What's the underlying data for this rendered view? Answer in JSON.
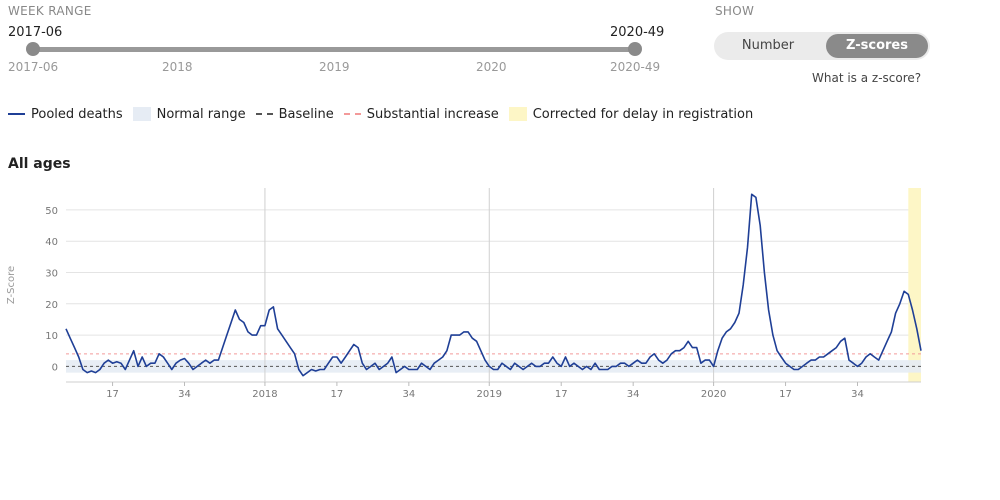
{
  "controls": {
    "week_range_label": "WEEK RANGE",
    "range_start": "2017-06",
    "range_end": "2020-49",
    "slider_ticks": [
      "2017-06",
      "2018",
      "2019",
      "2020",
      "2020-49"
    ],
    "show_label": "SHOW",
    "toggle_number": "Number",
    "toggle_zscores": "Z-scores",
    "toggle_selected": "Z-scores",
    "zscore_help": "What is a z-score?"
  },
  "legend": {
    "pooled_deaths": "Pooled deaths",
    "normal_range": "Normal range",
    "baseline": "Baseline",
    "substantial_increase": "Substantial increase",
    "corrected": "Corrected for delay in registration"
  },
  "colors": {
    "series": "#1f3f96",
    "normal_range": "#e6ecf4",
    "baseline": "#555555",
    "substantial_increase": "#f39a9a",
    "corrected": "#fdf6c6",
    "toggle_active": "#8a8a8a"
  },
  "chart_data": {
    "type": "line",
    "title": "All ages",
    "ylabel": "Z-Score",
    "xlabel": "",
    "ylim": [
      -5,
      57
    ],
    "yticks": [
      0,
      10,
      20,
      30,
      40,
      50
    ],
    "x_range_weeks": [
      0,
      202
    ],
    "x_tick_labels": [
      {
        "week": 11,
        "label": "17"
      },
      {
        "week": 28,
        "label": "34"
      },
      {
        "week": 47,
        "label": "2018"
      },
      {
        "week": 64,
        "label": "17"
      },
      {
        "week": 81,
        "label": "34"
      },
      {
        "week": 100,
        "label": "2019"
      },
      {
        "week": 117,
        "label": "17"
      },
      {
        "week": 134,
        "label": "34"
      },
      {
        "week": 153,
        "label": "2020"
      },
      {
        "week": 170,
        "label": "17"
      },
      {
        "week": 187,
        "label": "34"
      }
    ],
    "year_lines_weeks": [
      47,
      100,
      153
    ],
    "normal_range": [
      -2,
      2
    ],
    "baseline": 0,
    "substantial_increase": 4,
    "corrected_weeks": [
      199,
      202
    ],
    "series": [
      {
        "name": "Pooled deaths",
        "x": [
          0,
          1,
          2,
          3,
          4,
          5,
          6,
          7,
          8,
          9,
          10,
          11,
          12,
          13,
          14,
          15,
          16,
          17,
          18,
          19,
          20,
          21,
          22,
          23,
          24,
          25,
          26,
          27,
          28,
          29,
          30,
          31,
          32,
          33,
          34,
          35,
          36,
          37,
          38,
          39,
          40,
          41,
          42,
          43,
          44,
          45,
          46,
          47,
          48,
          49,
          50,
          51,
          52,
          53,
          54,
          55,
          56,
          57,
          58,
          59,
          60,
          61,
          62,
          63,
          64,
          65,
          66,
          67,
          68,
          69,
          70,
          71,
          72,
          73,
          74,
          75,
          76,
          77,
          78,
          79,
          80,
          81,
          82,
          83,
          84,
          85,
          86,
          87,
          88,
          89,
          90,
          91,
          92,
          93,
          94,
          95,
          96,
          97,
          98,
          99,
          100,
          101,
          102,
          103,
          104,
          105,
          106,
          107,
          108,
          109,
          110,
          111,
          112,
          113,
          114,
          115,
          116,
          117,
          118,
          119,
          120,
          121,
          122,
          123,
          124,
          125,
          126,
          127,
          128,
          129,
          130,
          131,
          132,
          133,
          134,
          135,
          136,
          137,
          138,
          139,
          140,
          141,
          142,
          143,
          144,
          145,
          146,
          147,
          148,
          149,
          150,
          151,
          152,
          153,
          154,
          155,
          156,
          157,
          158,
          159,
          160,
          161,
          162,
          163,
          164,
          165,
          166,
          167,
          168,
          169,
          170,
          171,
          172,
          173,
          174,
          175,
          176,
          177,
          178,
          179,
          180,
          181,
          182,
          183,
          184,
          185,
          186,
          187,
          188,
          189,
          190,
          191,
          192,
          193,
          194,
          195,
          196,
          197,
          198,
          199,
          200,
          201,
          202
        ],
        "values": [
          12,
          9,
          6,
          3,
          -1,
          -2,
          -1.5,
          -2,
          -1,
          1,
          2,
          1,
          1.5,
          1,
          -1,
          2,
          5,
          0,
          3,
          0,
          1,
          1,
          4,
          3,
          1,
          -1,
          1,
          2,
          2.5,
          1,
          -1,
          0,
          1,
          2,
          1,
          2,
          2,
          6,
          10,
          14,
          18,
          15,
          14,
          11,
          10,
          10,
          13,
          13,
          18,
          19,
          12,
          10,
          8,
          6,
          4,
          -1,
          -3,
          -2,
          -1,
          -1.5,
          -1,
          -1,
          1,
          3,
          3,
          1,
          3,
          5,
          7,
          6,
          1,
          -1,
          0,
          1,
          -1,
          0,
          1,
          3,
          -2,
          -1,
          0,
          -1,
          -1,
          -1,
          1,
          0,
          -1,
          1,
          2,
          3,
          5,
          10,
          10,
          10,
          11,
          11,
          9,
          8,
          5,
          2,
          0,
          -1,
          -1,
          1,
          0,
          -1,
          1,
          0,
          -1,
          0,
          1,
          0,
          0,
          1,
          1,
          3,
          1,
          0,
          3,
          0,
          1,
          0,
          -1,
          0,
          -1,
          1,
          -1,
          -1,
          -1,
          0,
          0,
          1,
          1,
          0,
          1,
          2,
          1,
          1,
          3,
          4,
          2,
          1,
          2,
          4,
          5,
          5,
          6,
          8,
          6,
          6,
          1,
          2,
          2,
          0,
          5,
          9,
          11,
          12,
          14,
          17,
          26,
          38,
          55,
          54,
          45,
          30,
          18,
          10,
          5,
          3,
          1,
          0,
          -1,
          -1,
          0,
          1,
          2,
          2,
          3,
          3,
          4,
          5,
          6,
          8,
          9,
          2,
          1,
          0,
          1,
          3,
          4,
          3,
          2,
          5,
          8,
          11,
          17,
          20,
          24,
          23,
          18,
          12,
          5
        ]
      }
    ]
  }
}
